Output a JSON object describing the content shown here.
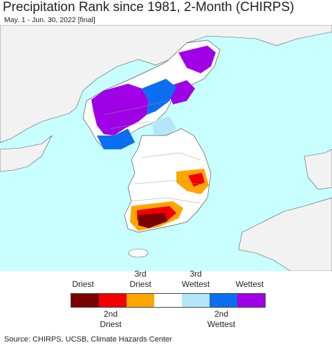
{
  "header": {
    "title": "Precipitation Rank since 1981, 2-Month (CHIRPS)",
    "subtitle": "May. 1 - Jun. 30, 2022 [final]"
  },
  "colors": {
    "ocean": "#c8ffff",
    "land_outside": "#f2f2f2",
    "land_inside": "#ffffff",
    "border": "#555555"
  },
  "legend": {
    "top_labels": [
      {
        "text": "Driest"
      },
      {
        "text": "3rd\nDriest"
      },
      {
        "text": "3rd\nWettest"
      },
      {
        "text": "Wettest"
      }
    ],
    "bottom_labels": [
      {
        "text": "2nd\nDriest"
      },
      {
        "text": "2nd\nWettest"
      }
    ],
    "swatches": [
      {
        "name": "driest",
        "color": "#7a0000"
      },
      {
        "name": "2nd-driest",
        "color": "#f00000"
      },
      {
        "name": "3rd-driest",
        "color": "#ffa500"
      },
      {
        "name": "normal",
        "color": "#ffffff"
      },
      {
        "name": "3rd-wettest",
        "color": "#b4e6fa"
      },
      {
        "name": "2nd-wettest",
        "color": "#0a6ef0"
      },
      {
        "name": "wettest",
        "color": "#a000e6"
      }
    ]
  },
  "footer": {
    "source": "Source: CHIRPS, UCSB, Climate Hazards Center"
  }
}
